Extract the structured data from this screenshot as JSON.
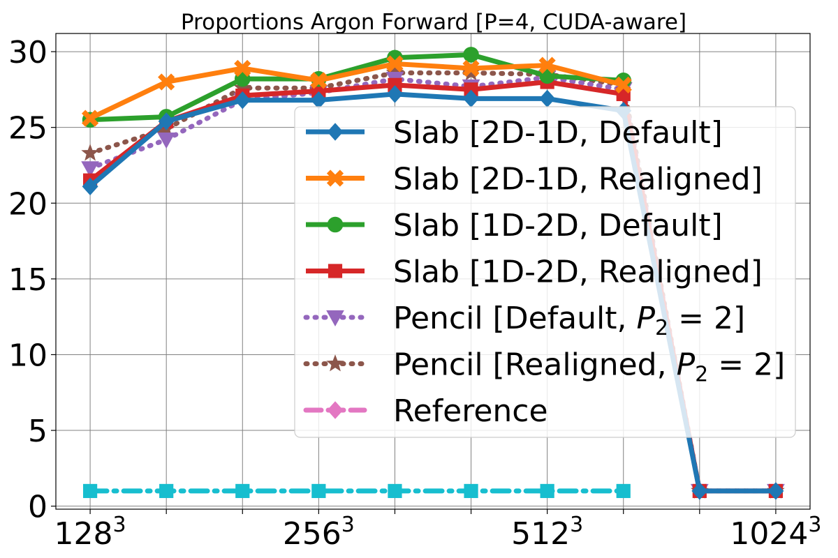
{
  "chart_data": {
    "type": "line",
    "title": "Proportions Argon Forward [P=4, CUDA-aware]",
    "xlabel": "",
    "ylabel": "",
    "x_positions": [
      0,
      1,
      2,
      3,
      4,
      5,
      6,
      7,
      8,
      9
    ],
    "xtick_labels": [
      {
        "pos": 0,
        "base": "128",
        "exp": "3"
      },
      {
        "pos": 3,
        "base": "256",
        "exp": "3"
      },
      {
        "pos": 6,
        "base": "512",
        "exp": "3"
      },
      {
        "pos": 9,
        "base": "1024",
        "exp": "3"
      }
    ],
    "ylim": [
      -0.2,
      31.2
    ],
    "yticks": [
      0,
      5,
      10,
      15,
      20,
      25,
      30
    ],
    "grid": true,
    "legend_placement": "center-right",
    "series": [
      {
        "name": "Slab [2D-1D, Default]",
        "label_parts": [
          {
            "t": "Slab [2D-1D, Default]"
          }
        ],
        "color": "#1f77b4",
        "style": "solid",
        "marker": "diamond",
        "values": [
          21.1,
          25.4,
          26.8,
          26.8,
          27.2,
          26.9,
          26.9,
          26.1,
          1.0,
          1.0
        ]
      },
      {
        "name": "Slab [2D-1D, Realigned]",
        "label_parts": [
          {
            "t": "Slab [2D-1D, Realigned]"
          }
        ],
        "color": "#ff7f0e",
        "style": "solid",
        "marker": "x",
        "values": [
          25.6,
          28.0,
          28.9,
          28.1,
          29.2,
          28.9,
          29.1,
          27.8,
          null,
          null
        ]
      },
      {
        "name": "Slab [1D-2D, Default]",
        "label_parts": [
          {
            "t": "Slab [1D-2D, Default]"
          }
        ],
        "color": "#2ca02c",
        "style": "solid",
        "marker": "circle",
        "values": [
          25.5,
          25.7,
          28.2,
          28.2,
          29.6,
          29.8,
          28.4,
          28.1,
          null,
          null
        ]
      },
      {
        "name": "Slab [1D-2D, Realigned]",
        "label_parts": [
          {
            "t": "Slab [1D-2D, Realigned]"
          }
        ],
        "color": "#d62728",
        "style": "solid",
        "marker": "square",
        "values": [
          21.5,
          25.4,
          27.1,
          27.4,
          27.8,
          27.5,
          28.0,
          27.2,
          1.0,
          1.0
        ]
      },
      {
        "name": "Pencil [Default, P2 = 2]",
        "label_parts": [
          {
            "t": "Pencil [Default, "
          },
          {
            "t": "P",
            "i": true
          },
          {
            "t": "2",
            "sub": true
          },
          {
            "t": " = 2]"
          }
        ],
        "color": "#9467bd",
        "style": "dotted",
        "marker": "triangle-down",
        "values": [
          22.3,
          24.2,
          26.8,
          27.3,
          28.2,
          27.7,
          28.3,
          27.5,
          1.0,
          1.0
        ]
      },
      {
        "name": "Pencil [Realigned, P2 = 2]",
        "label_parts": [
          {
            "t": "Pencil [Realigned, "
          },
          {
            "t": "P",
            "i": true
          },
          {
            "t": "2",
            "sub": true
          },
          {
            "t": " = 2]"
          }
        ],
        "color": "#8c564b",
        "style": "dotted",
        "marker": "star",
        "values": [
          23.3,
          24.9,
          27.6,
          27.6,
          28.6,
          28.6,
          28.5,
          27.8,
          1.0,
          1.0
        ]
      },
      {
        "name": "Reference",
        "label_parts": [
          {
            "t": "Reference"
          }
        ],
        "color": "#e377c2",
        "style": "dashed",
        "marker": "diamond",
        "values": [
          null,
          null,
          null,
          null,
          null,
          null,
          null,
          null,
          null,
          null
        ]
      },
      {
        "name": "",
        "label_parts": [],
        "color": "#17becf",
        "style": "dashdot",
        "marker": "square",
        "in_legend": false,
        "values": [
          1.0,
          1.0,
          1.0,
          1.0,
          1.0,
          1.0,
          1.0,
          1.0,
          null,
          null
        ]
      }
    ]
  }
}
